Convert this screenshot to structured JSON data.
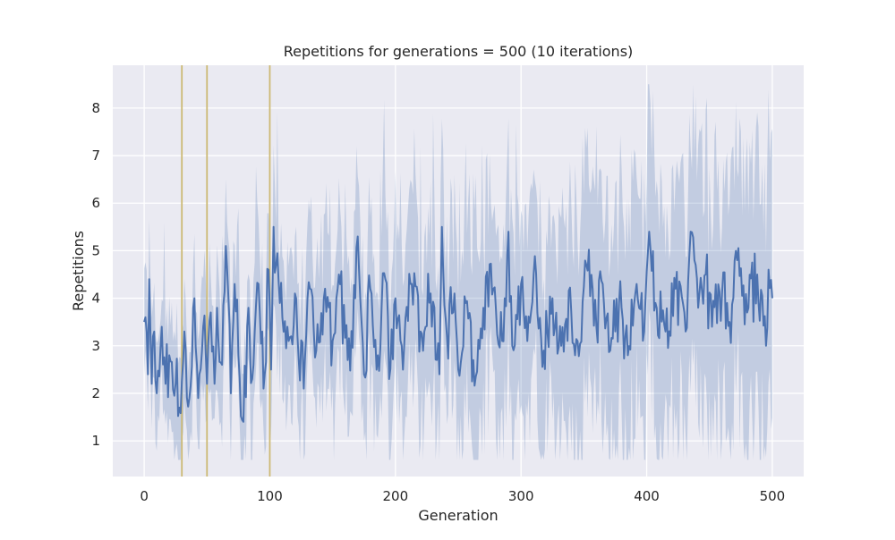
{
  "chart_data": {
    "type": "line",
    "title": "Repetitions for generations = 500 (10 iterations)",
    "xlabel": "Generation",
    "ylabel": "Repetitions",
    "xlim": [
      -25,
      525
    ],
    "ylim": [
      0.25,
      8.9
    ],
    "xticks": [
      0,
      100,
      200,
      300,
      400,
      500
    ],
    "yticks": [
      1,
      2,
      3,
      4,
      5,
      6,
      7,
      8
    ],
    "grid": true,
    "legend": "none",
    "vertical_lines": [
      {
        "x": 30,
        "color": "#ccb974"
      },
      {
        "x": 50,
        "color": "#ccb974"
      },
      {
        "x": 100,
        "color": "#ccb974"
      }
    ],
    "series": [
      {
        "color": "#4c72b0",
        "band_color": "#4c72b0",
        "x_start": 0,
        "x_end": 500,
        "anchor_mean": [
          [
            0,
            3.5
          ],
          [
            1,
            3.6
          ],
          [
            3,
            2.4
          ],
          [
            4,
            4.4
          ],
          [
            6,
            2.2
          ],
          [
            8,
            3.3
          ],
          [
            10,
            2.0
          ],
          [
            14,
            3.4
          ],
          [
            17,
            2.2
          ],
          [
            20,
            2.8
          ],
          [
            25,
            2.2
          ],
          [
            28,
            1.7
          ],
          [
            32,
            3.3
          ],
          [
            36,
            1.9
          ],
          [
            40,
            4.0
          ],
          [
            43,
            1.9
          ],
          [
            47,
            3.4
          ],
          [
            50,
            2.2
          ],
          [
            53,
            3.7
          ],
          [
            56,
            2.2
          ],
          [
            58,
            3.8
          ],
          [
            62,
            2.6
          ],
          [
            65,
            5.1
          ],
          [
            69,
            2.0
          ],
          [
            72,
            4.3
          ],
          [
            75,
            2.8
          ],
          [
            79,
            1.4
          ],
          [
            83,
            3.8
          ],
          [
            86,
            2.3
          ],
          [
            88,
            3.3
          ],
          [
            91,
            4.3
          ],
          [
            95,
            2.1
          ],
          [
            99,
            4.6
          ],
          [
            101,
            2.5
          ],
          [
            103,
            5.5
          ],
          [
            108,
            3.9
          ],
          [
            115,
            3.1
          ],
          [
            120,
            4.1
          ],
          [
            127,
            2.1
          ],
          [
            132,
            4.2
          ],
          [
            137,
            2.9
          ],
          [
            143,
            4.0
          ],
          [
            150,
            3.1
          ],
          [
            155,
            4.5
          ],
          [
            162,
            2.7
          ],
          [
            168,
            4.0
          ],
          [
            170,
            5.3
          ],
          [
            175,
            2.4
          ],
          [
            180,
            4.2
          ],
          [
            186,
            2.8
          ],
          [
            192,
            4.4
          ],
          [
            195,
            2.3
          ],
          [
            200,
            4.0
          ],
          [
            205,
            3.0
          ],
          [
            212,
            4.3
          ],
          [
            220,
            3.3
          ],
          [
            228,
            4.1
          ],
          [
            235,
            2.4
          ],
          [
            237,
            5.5
          ],
          [
            241,
            3.2
          ],
          [
            247,
            4.1
          ],
          [
            250,
            2.5
          ],
          [
            256,
            3.9
          ],
          [
            262,
            2.7
          ],
          [
            270,
            3.8
          ],
          [
            278,
            4.2
          ],
          [
            285,
            3.1
          ],
          [
            290,
            5.4
          ],
          [
            293,
            3.0
          ],
          [
            300,
            4.3
          ],
          [
            305,
            3.1
          ],
          [
            310,
            4.5
          ],
          [
            318,
            2.9
          ],
          [
            325,
            4.0
          ],
          [
            332,
            3.0
          ],
          [
            340,
            3.7
          ],
          [
            345,
            3.1
          ],
          [
            352,
            4.7
          ],
          [
            360,
            3.4
          ],
          [
            365,
            4.3
          ],
          [
            371,
            2.9
          ],
          [
            378,
            3.9
          ],
          [
            385,
            2.8
          ],
          [
            392,
            4.3
          ],
          [
            398,
            3.3
          ],
          [
            402,
            5.4
          ],
          [
            407,
            3.9
          ],
          [
            415,
            3.3
          ],
          [
            423,
            4.2
          ],
          [
            431,
            3.3
          ],
          [
            435,
            5.4
          ],
          [
            441,
            3.8
          ],
          [
            447,
            4.5
          ],
          [
            452,
            3.4
          ],
          [
            460,
            4.1
          ],
          [
            466,
            3.5
          ],
          [
            472,
            4.8
          ],
          [
            480,
            3.7
          ],
          [
            488,
            4.5
          ],
          [
            495,
            3.0
          ],
          [
            497,
            4.6
          ],
          [
            500,
            4.0
          ]
        ]
      }
    ]
  }
}
